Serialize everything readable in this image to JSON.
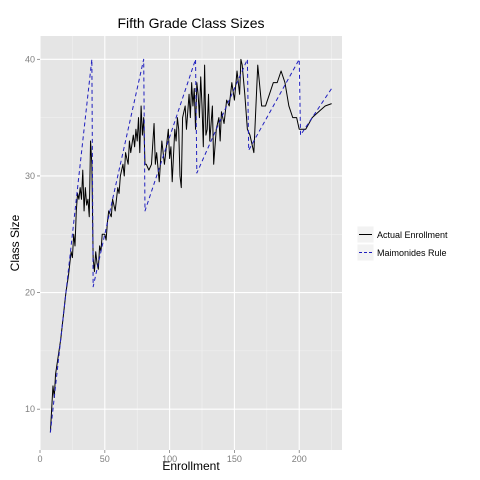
{
  "chart_data": {
    "type": "line",
    "title": "Fifth Grade Class Sizes",
    "xlabel": "Enrollment",
    "ylabel": "Class Size",
    "xlim": [
      0,
      233
    ],
    "ylim": [
      6.5,
      42
    ],
    "x_ticks": [
      0,
      50,
      100,
      150,
      200
    ],
    "y_ticks": [
      10,
      20,
      30,
      40
    ],
    "grid": true,
    "legend_position": "right",
    "series": [
      {
        "name": "Actual Enrollment",
        "style": "solid",
        "color": "#000000",
        "points": [
          [
            8,
            8
          ],
          [
            10,
            12
          ],
          [
            11,
            11
          ],
          [
            12,
            13
          ],
          [
            14,
            14.5
          ],
          [
            16,
            16
          ],
          [
            18,
            18
          ],
          [
            20,
            20
          ],
          [
            22,
            21.5
          ],
          [
            24,
            23.5
          ],
          [
            25,
            23
          ],
          [
            26,
            25
          ],
          [
            27,
            24
          ],
          [
            28,
            27
          ],
          [
            29,
            28.5
          ],
          [
            30,
            28
          ],
          [
            31,
            29
          ],
          [
            32,
            28
          ],
          [
            33,
            30.5
          ],
          [
            34,
            27
          ],
          [
            35,
            29
          ],
          [
            36,
            27.5
          ],
          [
            37,
            28
          ],
          [
            38,
            26.5
          ],
          [
            39,
            33
          ],
          [
            40,
            31
          ],
          [
            41,
            23
          ],
          [
            42,
            21.8
          ],
          [
            43,
            23.5
          ],
          [
            44,
            22.5
          ],
          [
            45,
            22
          ],
          [
            46,
            24
          ],
          [
            47,
            23.5
          ],
          [
            48,
            25
          ],
          [
            50,
            25
          ],
          [
            51,
            24.5
          ],
          [
            52,
            26
          ],
          [
            53,
            27
          ],
          [
            55,
            26.5
          ],
          [
            56,
            28
          ],
          [
            58,
            27
          ],
          [
            60,
            29
          ],
          [
            61,
            28.5
          ],
          [
            62,
            30
          ],
          [
            64,
            31
          ],
          [
            65,
            30
          ],
          [
            66,
            32
          ],
          [
            68,
            31
          ],
          [
            69,
            33
          ],
          [
            70,
            32
          ],
          [
            72,
            33.5
          ],
          [
            73,
            32.5
          ],
          [
            74,
            34
          ],
          [
            75,
            33
          ],
          [
            76,
            35
          ],
          [
            77,
            32
          ],
          [
            78,
            36
          ],
          [
            79,
            33.5
          ],
          [
            80,
            35
          ],
          [
            81,
            31
          ],
          [
            82,
            31
          ],
          [
            84,
            30.5
          ],
          [
            86,
            31
          ],
          [
            88,
            34.5
          ],
          [
            89,
            31
          ],
          [
            90,
            32
          ],
          [
            92,
            29.5
          ],
          [
            94,
            33
          ],
          [
            96,
            31
          ],
          [
            98,
            33
          ],
          [
            99,
            34
          ],
          [
            100,
            31.5
          ],
          [
            101,
            32.5
          ],
          [
            102,
            29.5
          ],
          [
            104,
            34
          ],
          [
            105,
            33
          ],
          [
            106,
            35
          ],
          [
            107,
            34
          ],
          [
            108,
            30
          ],
          [
            109,
            29
          ],
          [
            110,
            35
          ],
          [
            112,
            36
          ],
          [
            113,
            34
          ],
          [
            115,
            37
          ],
          [
            116,
            35
          ],
          [
            117,
            38
          ],
          [
            118,
            36
          ],
          [
            119,
            37.5
          ],
          [
            120,
            34
          ],
          [
            121,
            38
          ],
          [
            122,
            37
          ],
          [
            123,
            35
          ],
          [
            124,
            38.5
          ],
          [
            125,
            36
          ],
          [
            126,
            32.5
          ],
          [
            127,
            39.5
          ],
          [
            128,
            33.5
          ],
          [
            129,
            34
          ],
          [
            130,
            37
          ],
          [
            131,
            33
          ],
          [
            133,
            36
          ],
          [
            134,
            31
          ],
          [
            136,
            34
          ],
          [
            138,
            35
          ],
          [
            139,
            33
          ],
          [
            140,
            35.5
          ],
          [
            142,
            34.5
          ],
          [
            144,
            36.5
          ],
          [
            146,
            36
          ],
          [
            148,
            38
          ],
          [
            150,
            36.5
          ],
          [
            152,
            39
          ],
          [
            154,
            37
          ],
          [
            155,
            40
          ],
          [
            156,
            39.5
          ],
          [
            158,
            37
          ],
          [
            160,
            34
          ],
          [
            162,
            33.5
          ],
          [
            165,
            32
          ],
          [
            168,
            39.5
          ],
          [
            171,
            36
          ],
          [
            174,
            36
          ],
          [
            177,
            37
          ],
          [
            180,
            38
          ],
          [
            183,
            38
          ],
          [
            186,
            39
          ],
          [
            189,
            38
          ],
          [
            192,
            36
          ],
          [
            195,
            35
          ],
          [
            198,
            35
          ],
          [
            200,
            34
          ],
          [
            205,
            34
          ],
          [
            210,
            35
          ],
          [
            215,
            35.5
          ],
          [
            220,
            36
          ],
          [
            225,
            36.2
          ]
        ]
      },
      {
        "name": "Maimonides Rule",
        "style": "dashed",
        "color": "#1f1fbf",
        "points": [
          [
            8,
            8
          ],
          [
            40,
            40
          ],
          [
            41,
            20.5
          ],
          [
            80,
            40
          ],
          [
            81,
            27
          ],
          [
            120,
            40
          ],
          [
            121,
            30.25
          ],
          [
            160,
            40
          ],
          [
            161,
            32.2
          ],
          [
            200,
            40
          ],
          [
            201,
            33.5
          ],
          [
            225,
            37.5
          ]
        ]
      }
    ]
  }
}
